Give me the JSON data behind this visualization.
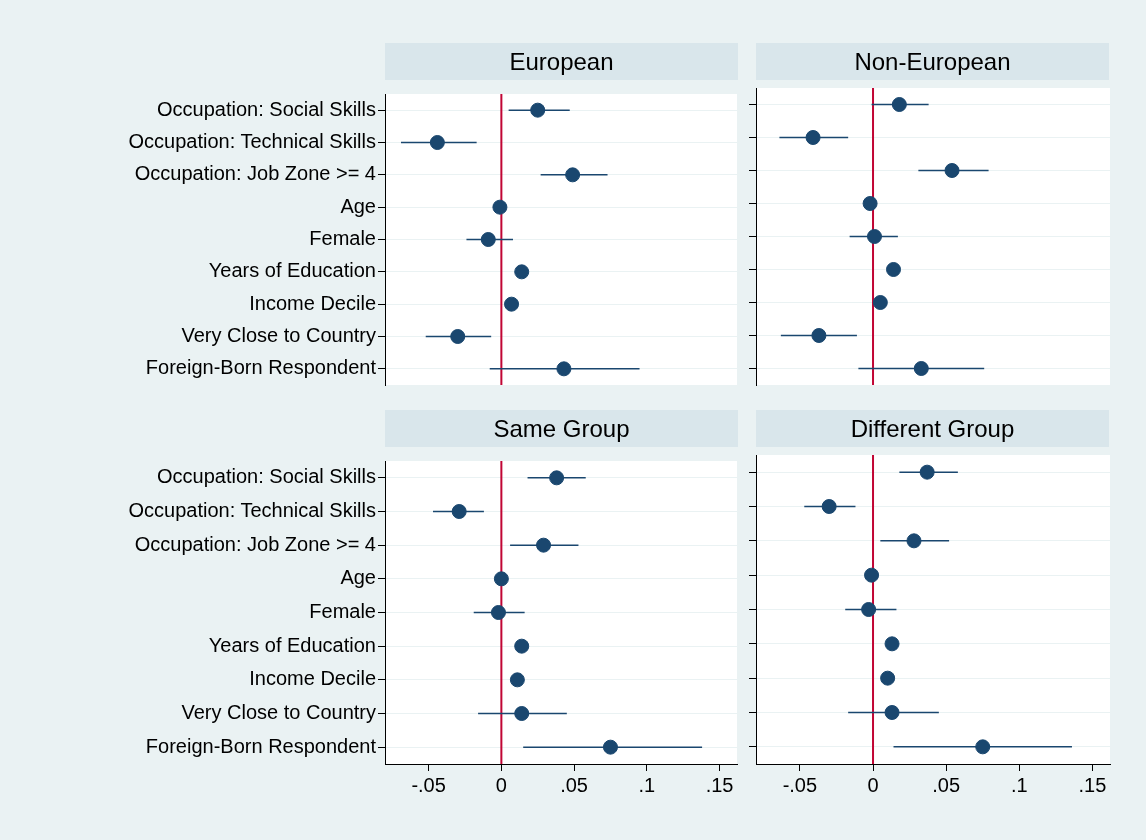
{
  "chart_data": [
    {
      "type": "scatter",
      "title": "European",
      "orientation": "horizontal",
      "categories": [
        "Occupation: Social Skills",
        "Occupation: Technical Skills",
        "Occupation: Job Zone >= 4",
        "Age",
        "Female",
        "Years of Education",
        "Income Decile",
        "Very Close to Country",
        "Foreign-Born Respondent"
      ],
      "color": "#1a476f",
      "marker": "circle",
      "grid": "y",
      "tick_labels": "y",
      "values": [
        0.025,
        -0.044,
        0.049,
        -0.001,
        -0.009,
        0.014,
        0.007,
        -0.03,
        0.043
      ],
      "errors": [
        [
          0.005,
          0.047
        ],
        [
          -0.069,
          -0.017
        ],
        [
          0.027,
          0.073
        ],
        null,
        [
          -0.024,
          0.008
        ],
        null,
        null,
        [
          -0.052,
          -0.007
        ],
        [
          -0.008,
          0.095
        ]
      ],
      "xlim": [
        -0.08,
        0.162
      ],
      "ref_lines": [
        {
          "axis": "x",
          "value": 0,
          "color": "#c10534"
        }
      ]
    },
    {
      "type": "scatter",
      "title": "Non-European",
      "orientation": "horizontal",
      "categories": [
        null,
        null,
        null,
        null,
        null,
        null,
        null,
        null,
        null
      ],
      "color": "#1a476f",
      "marker": "circle",
      "grid": "y",
      "tick_labels": false,
      "values": [
        0.018,
        -0.041,
        0.054,
        -0.002,
        0.001,
        0.014,
        0.005,
        -0.037,
        0.033
      ],
      "errors": [
        [
          -0.001,
          0.038
        ],
        [
          -0.064,
          -0.017
        ],
        [
          0.031,
          0.079
        ],
        null,
        [
          -0.016,
          0.017
        ],
        null,
        null,
        [
          -0.063,
          -0.011
        ],
        [
          -0.01,
          0.076
        ]
      ],
      "xlim": [
        -0.08,
        0.162
      ],
      "ref_lines": [
        {
          "axis": "x",
          "value": 0,
          "color": "#c10534"
        }
      ]
    },
    {
      "type": "scatter",
      "title": "Same Group",
      "orientation": "horizontal",
      "categories": [
        "Occupation: Social Skills",
        "Occupation: Technical Skills",
        "Occupation: Job Zone >= 4",
        "Age",
        "Female",
        "Years of Education",
        "Income Decile",
        "Very Close to Country",
        "Foreign-Born Respondent"
      ],
      "color": "#1a476f",
      "marker": "circle",
      "grid": "y",
      "values": [
        0.038,
        -0.029,
        0.029,
        0,
        -0.002,
        0.014,
        0.011,
        0.014,
        0.075
      ],
      "errors": [
        [
          0.018,
          0.058
        ],
        [
          -0.047,
          -0.012
        ],
        [
          0.006,
          0.053
        ],
        null,
        [
          -0.019,
          0.016
        ],
        null,
        null,
        [
          -0.016,
          0.045
        ],
        [
          0.015,
          0.138
        ]
      ],
      "xlim": [
        -0.08,
        0.162
      ],
      "xticks": [
        {
          "value": -0.05,
          "label": "-.05"
        },
        0,
        {
          "value": 0.05,
          "label": ".05"
        },
        {
          "value": 0.1,
          "label": ".1"
        },
        {
          "value": 0.15,
          "label": ".15"
        }
      ],
      "ref_lines": [
        {
          "axis": "x",
          "value": 0,
          "color": "#c10534"
        }
      ]
    },
    {
      "type": "scatter",
      "title": "Different Group",
      "orientation": "horizontal",
      "categories": [
        null,
        null,
        null,
        null,
        null,
        null,
        null,
        null,
        null
      ],
      "color": "#1a476f",
      "marker": "circle",
      "grid": "y",
      "tick_labels": "x",
      "values": [
        0.037,
        -0.03,
        0.028,
        -0.001,
        -0.003,
        0.013,
        0.01,
        0.013,
        0.075
      ],
      "errors": [
        [
          0.018,
          0.058
        ],
        [
          -0.047,
          -0.012
        ],
        [
          0.005,
          0.052
        ],
        null,
        [
          -0.019,
          0.016
        ],
        null,
        null,
        [
          -0.017,
          0.045
        ],
        [
          0.014,
          0.136
        ]
      ],
      "xlim": [
        -0.08,
        0.162
      ],
      "xticks": [
        {
          "value": -0.05,
          "label": "-.05"
        },
        0,
        {
          "value": 0.05,
          "label": ".05"
        },
        {
          "value": 0.1,
          "label": ".1"
        },
        {
          "value": 0.15,
          "label": ".15"
        }
      ],
      "ref_lines": [
        {
          "axis": "x",
          "value": 0,
          "color": "#c10534"
        }
      ]
    }
  ]
}
